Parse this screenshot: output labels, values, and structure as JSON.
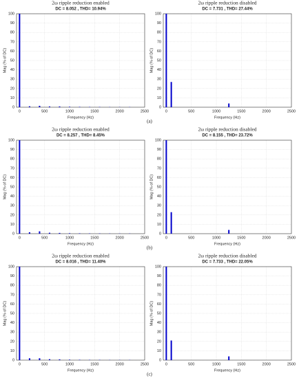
{
  "chart_data": [
    {
      "type": "bar",
      "title": "2ω ripple reduction enabled",
      "subtitle": "DC = 8.052 , THD= 10.94%",
      "x_label": "Frequency (Hz)",
      "y_label": "Mag (% of DC)",
      "x": [
        0,
        200,
        400,
        600,
        800,
        1000,
        1200,
        1400,
        1600,
        1800,
        2000,
        2200
      ],
      "values": [
        100,
        1,
        1.5,
        0.8,
        0.8,
        0.5,
        0.4,
        0.3,
        0.3,
        0.2,
        0.2,
        0.2
      ],
      "color": "#0000cc",
      "xlim": [
        -60,
        2500
      ],
      "xticks": [
        0,
        500,
        1000,
        1500,
        2000,
        2500
      ],
      "ylim": [
        0,
        100
      ],
      "yticks": [
        0,
        10,
        20,
        30,
        40,
        50,
        60,
        70,
        80,
        90,
        100
      ],
      "grid": true
    },
    {
      "type": "bar",
      "title": "2ω ripple reduction disabled",
      "subtitle": "DC = 7.731 , THD= 27.44%",
      "x_label": "Frequency (Hz)",
      "y_label": "Mag (% of DC)",
      "x": [
        0,
        100,
        1250
      ],
      "values": [
        100,
        27,
        4
      ],
      "color": "#0000cc",
      "xlim": [
        -60,
        2500
      ],
      "xticks": [
        0,
        500,
        1000,
        1500,
        2000,
        2500
      ],
      "ylim": [
        0,
        100
      ],
      "yticks": [
        0,
        10,
        20,
        30,
        40,
        50,
        60,
        70,
        80,
        90,
        100
      ],
      "grid": true
    },
    {
      "type": "bar",
      "title": "2ω ripple reduction enabled",
      "subtitle": "DC = 8.257 , THD= 8.45%",
      "x_label": "Frequency (Hz)",
      "y_label": "Mag (% of DC)",
      "x": [
        0,
        200,
        400,
        600,
        800,
        1000,
        1200,
        1400,
        1600,
        1800,
        2000,
        2200
      ],
      "values": [
        100,
        1.5,
        2.5,
        1,
        0.8,
        0.5,
        0.4,
        0.3,
        0.3,
        0.2,
        0.2,
        0.2
      ],
      "color": "#0000cc",
      "xlim": [
        -60,
        2500
      ],
      "xticks": [
        0,
        500,
        1000,
        1500,
        2000,
        2500
      ],
      "ylim": [
        0,
        100
      ],
      "yticks": [
        0,
        10,
        20,
        30,
        40,
        50,
        60,
        70,
        80,
        90,
        100
      ],
      "grid": true
    },
    {
      "type": "bar",
      "title": "2ω ripple reduction disabled",
      "subtitle": "DC = 8.155 , THD= 23.72%",
      "x_label": "Frequency (Hz)",
      "y_label": "Mag (% of DC)",
      "x": [
        0,
        100,
        1250
      ],
      "values": [
        100,
        23,
        4
      ],
      "color": "#0000cc",
      "xlim": [
        -60,
        2500
      ],
      "xticks": [
        0,
        500,
        1000,
        1500,
        2000,
        2500
      ],
      "ylim": [
        0,
        100
      ],
      "yticks": [
        0,
        10,
        20,
        30,
        40,
        50,
        60,
        70,
        80,
        90,
        100
      ],
      "grid": true
    },
    {
      "type": "bar",
      "title": "2ω ripple reduction enabled",
      "subtitle": "DC = 8.016 , THD= 11.40%",
      "x_label": "Frequency (Hz)",
      "y_label": "Mag (% of DC)",
      "x": [
        0,
        200,
        400,
        600,
        800,
        1000,
        1200,
        1400,
        1600,
        1800,
        2000,
        2200
      ],
      "values": [
        100,
        2,
        2,
        1,
        0.8,
        0.5,
        0.4,
        0.3,
        0.3,
        0.2,
        0.2,
        0.2
      ],
      "color": "#0000cc",
      "xlim": [
        -60,
        2500
      ],
      "xticks": [
        0,
        500,
        1000,
        1500,
        2000,
        2500
      ],
      "ylim": [
        0,
        100
      ],
      "yticks": [
        0,
        10,
        20,
        30,
        40,
        50,
        60,
        70,
        80,
        90,
        100
      ],
      "grid": true
    },
    {
      "type": "bar",
      "title": "2ω ripple reduction disabled",
      "subtitle": "DC = 7.733 , THD= 22.05%",
      "x_label": "Frequency (Hz)",
      "y_label": "Mag (% of DC)",
      "x": [
        0,
        100,
        1250
      ],
      "values": [
        100,
        21,
        4
      ],
      "color": "#0000cc",
      "xlim": [
        -60,
        2500
      ],
      "xticks": [
        0,
        500,
        1000,
        1500,
        2000,
        2500
      ],
      "ylim": [
        0,
        100
      ],
      "yticks": [
        0,
        10,
        20,
        30,
        40,
        50,
        60,
        70,
        80,
        90,
        100
      ],
      "grid": true
    }
  ],
  "panels": [
    "(a)",
    "(b)",
    "(c)"
  ]
}
